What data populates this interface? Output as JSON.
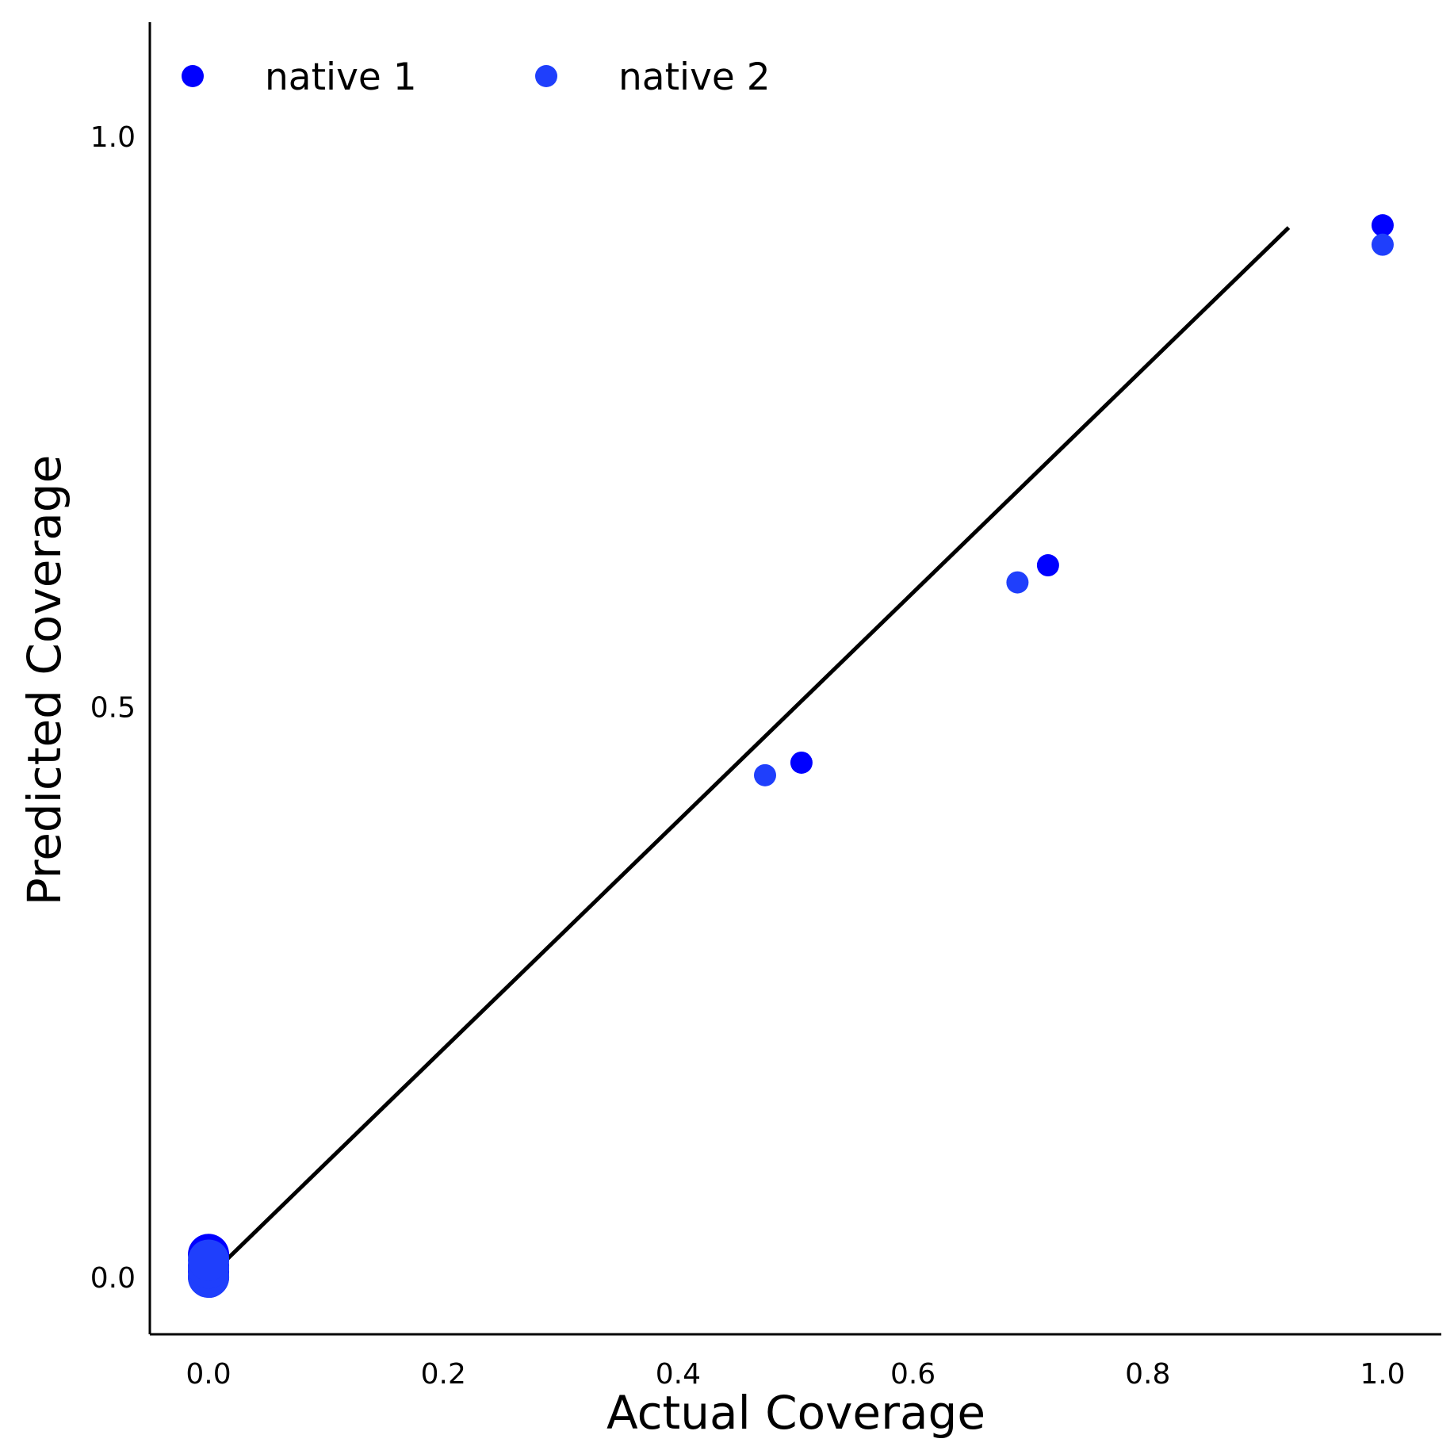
{
  "chart_data": {
    "type": "scatter",
    "title": "",
    "xlabel": "Actual Coverage",
    "ylabel": "Predicted Coverage",
    "xlim": [
      -0.05,
      1.05
    ],
    "ylim": [
      -0.05,
      1.1
    ],
    "xticks": [
      "0.0",
      "0.2",
      "0.4",
      "0.6",
      "0.8",
      "1.0"
    ],
    "xtick_values": [
      0.0,
      0.2,
      0.4,
      0.6,
      0.8,
      1.0
    ],
    "yticks": [
      "0.0",
      "0.5",
      "1.0"
    ],
    "ytick_values": [
      0.0,
      0.5,
      1.0
    ],
    "grid": false,
    "legend_position": "top-left",
    "reference_line": {
      "x": [
        0.0,
        0.92
      ],
      "y": [
        0.0,
        0.92
      ],
      "color": "#000000"
    },
    "series": [
      {
        "name": "native 1",
        "color": "#0000ff",
        "points": [
          [
            0.0,
            0.0
          ],
          [
            0.0,
            0.005
          ],
          [
            0.0,
            0.01
          ],
          [
            0.0,
            0.02
          ],
          [
            0.505,
            0.451
          ],
          [
            0.715,
            0.624
          ],
          [
            1.0,
            0.922
          ]
        ]
      },
      {
        "name": "native 2",
        "color": "#1f3ffc",
        "points": [
          [
            0.0,
            0.0
          ],
          [
            0.0,
            0.008
          ],
          [
            0.0,
            0.015
          ],
          [
            0.474,
            0.44
          ],
          [
            0.689,
            0.609
          ],
          [
            1.0,
            0.905
          ]
        ]
      }
    ]
  }
}
